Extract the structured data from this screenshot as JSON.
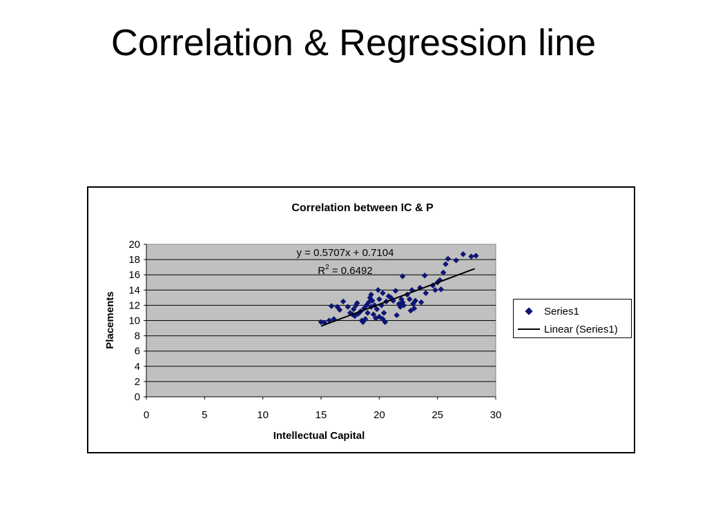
{
  "slide": {
    "title": "Correlation & Regression line"
  },
  "colors": {
    "marker": "#0d1575",
    "plot_bg": "#c0c0c0",
    "trendline": "#000000"
  },
  "chart_data": {
    "type": "scatter",
    "title": "Correlation between IC & P",
    "xlabel": "Intellectual Capital",
    "ylabel": "Placements",
    "xlim": [
      0,
      30
    ],
    "ylim": [
      0,
      20
    ],
    "xticks": [
      "0",
      "5",
      "10",
      "15",
      "20",
      "25",
      "30"
    ],
    "yticks": [
      "0",
      "2",
      "4",
      "6",
      "8",
      "10",
      "12",
      "14",
      "16",
      "18",
      "20"
    ],
    "grid": "horizontal",
    "legend_position": "right",
    "equation": "y = 0.5707x + 0.7104",
    "r2_prefix": "R",
    "r2_sup": "2",
    "r2_value": " = 0.6492",
    "trendline": {
      "name": "Linear (Series1)",
      "slope": 0.5707,
      "intercept": 0.7104,
      "x_range": [
        15,
        28.2
      ]
    },
    "series": [
      {
        "name": "Series1",
        "points": [
          [
            15.0,
            9.8
          ],
          [
            15.3,
            9.7
          ],
          [
            15.7,
            10.0
          ],
          [
            15.9,
            11.9
          ],
          [
            16.1,
            10.2
          ],
          [
            16.4,
            11.8
          ],
          [
            16.6,
            11.4
          ],
          [
            16.9,
            12.5
          ],
          [
            17.3,
            11.8
          ],
          [
            17.5,
            11.0
          ],
          [
            17.7,
            10.8
          ],
          [
            17.8,
            11.5
          ],
          [
            17.9,
            10.6
          ],
          [
            18.0,
            12.0
          ],
          [
            18.1,
            12.3
          ],
          [
            18.2,
            10.9
          ],
          [
            18.4,
            11.2
          ],
          [
            18.5,
            10.0
          ],
          [
            18.6,
            9.8
          ],
          [
            18.7,
            11.6
          ],
          [
            18.8,
            10.2
          ],
          [
            18.9,
            12.0
          ],
          [
            19.0,
            11.0
          ],
          [
            19.1,
            12.4
          ],
          [
            19.2,
            13.0
          ],
          [
            19.3,
            11.8
          ],
          [
            19.3,
            13.4
          ],
          [
            19.4,
            12.6
          ],
          [
            19.5,
            10.8
          ],
          [
            19.6,
            12.0
          ],
          [
            19.7,
            10.3
          ],
          [
            19.8,
            11.5
          ],
          [
            19.9,
            14.0
          ],
          [
            20.0,
            12.8
          ],
          [
            20.0,
            10.5
          ],
          [
            20.2,
            12.0
          ],
          [
            20.3,
            13.6
          ],
          [
            20.3,
            10.2
          ],
          [
            20.4,
            11.0
          ],
          [
            20.5,
            9.8
          ],
          [
            20.6,
            12.5
          ],
          [
            20.8,
            13.2
          ],
          [
            21.0,
            13.0
          ],
          [
            21.2,
            12.6
          ],
          [
            21.4,
            13.9
          ],
          [
            21.5,
            10.7
          ],
          [
            21.7,
            12.2
          ],
          [
            21.8,
            11.8
          ],
          [
            21.9,
            12.8
          ],
          [
            22.0,
            15.8
          ],
          [
            22.0,
            12.4
          ],
          [
            22.1,
            12.0
          ],
          [
            22.4,
            13.4
          ],
          [
            22.6,
            12.8
          ],
          [
            22.7,
            11.3
          ],
          [
            22.8,
            14.0
          ],
          [
            22.9,
            12.2
          ],
          [
            23.0,
            11.6
          ],
          [
            23.1,
            12.6
          ],
          [
            23.5,
            14.3
          ],
          [
            23.6,
            12.4
          ],
          [
            23.9,
            15.9
          ],
          [
            24.0,
            13.6
          ],
          [
            24.6,
            14.6
          ],
          [
            24.8,
            14.0
          ],
          [
            25.0,
            15.0
          ],
          [
            25.2,
            15.3
          ],
          [
            25.3,
            14.1
          ],
          [
            25.5,
            16.3
          ],
          [
            25.7,
            17.4
          ],
          [
            25.9,
            18.1
          ],
          [
            26.6,
            17.9
          ],
          [
            27.2,
            18.7
          ],
          [
            27.9,
            18.4
          ],
          [
            28.3,
            18.5
          ]
        ]
      }
    ]
  }
}
